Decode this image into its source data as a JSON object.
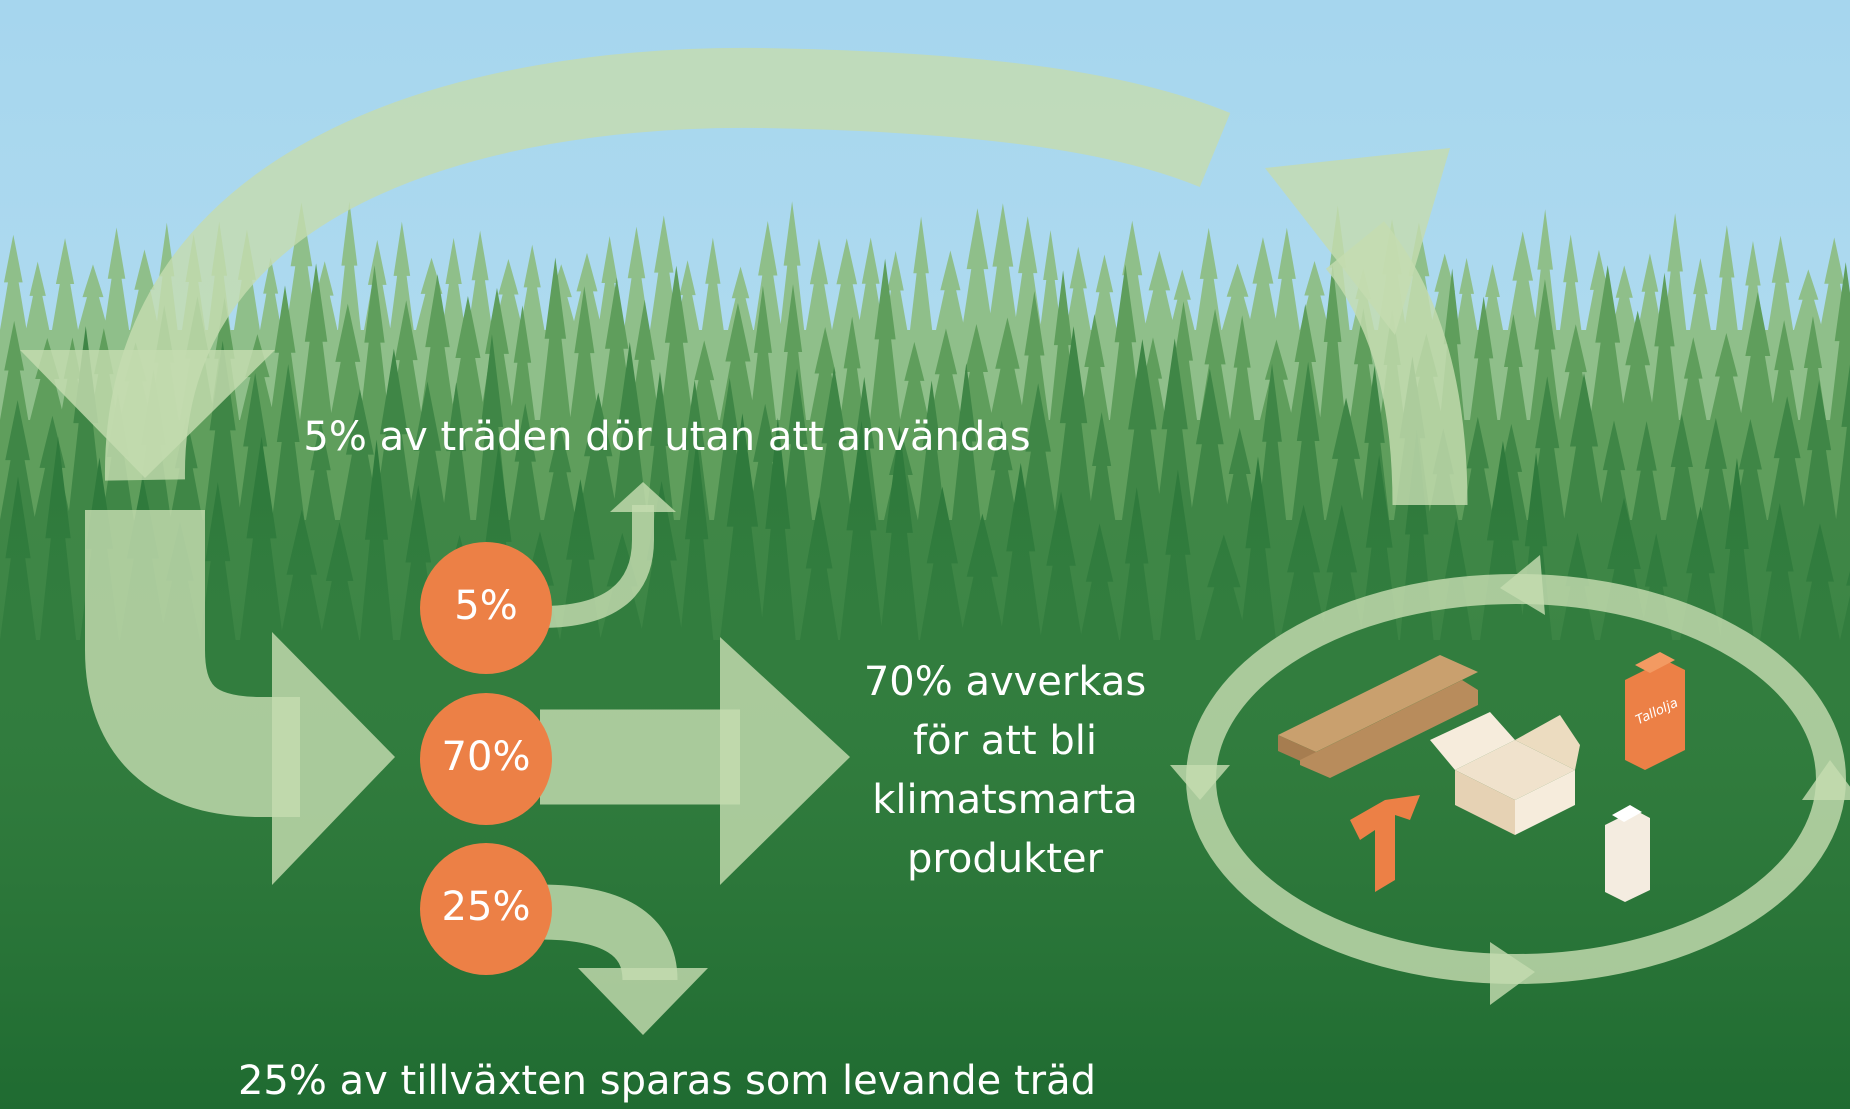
{
  "badges": [
    {
      "label": "5%"
    },
    {
      "label": "70%"
    },
    {
      "label": "25%"
    }
  ],
  "captions": {
    "dead": "5% av träden dör utan att användas",
    "harvested": [
      "70% avverkas",
      "för att bli",
      "klimatsmarta",
      "produkter"
    ],
    "saved": "25% av tillväxten sparas som levande träd"
  },
  "product_label": "Tallolja"
}
